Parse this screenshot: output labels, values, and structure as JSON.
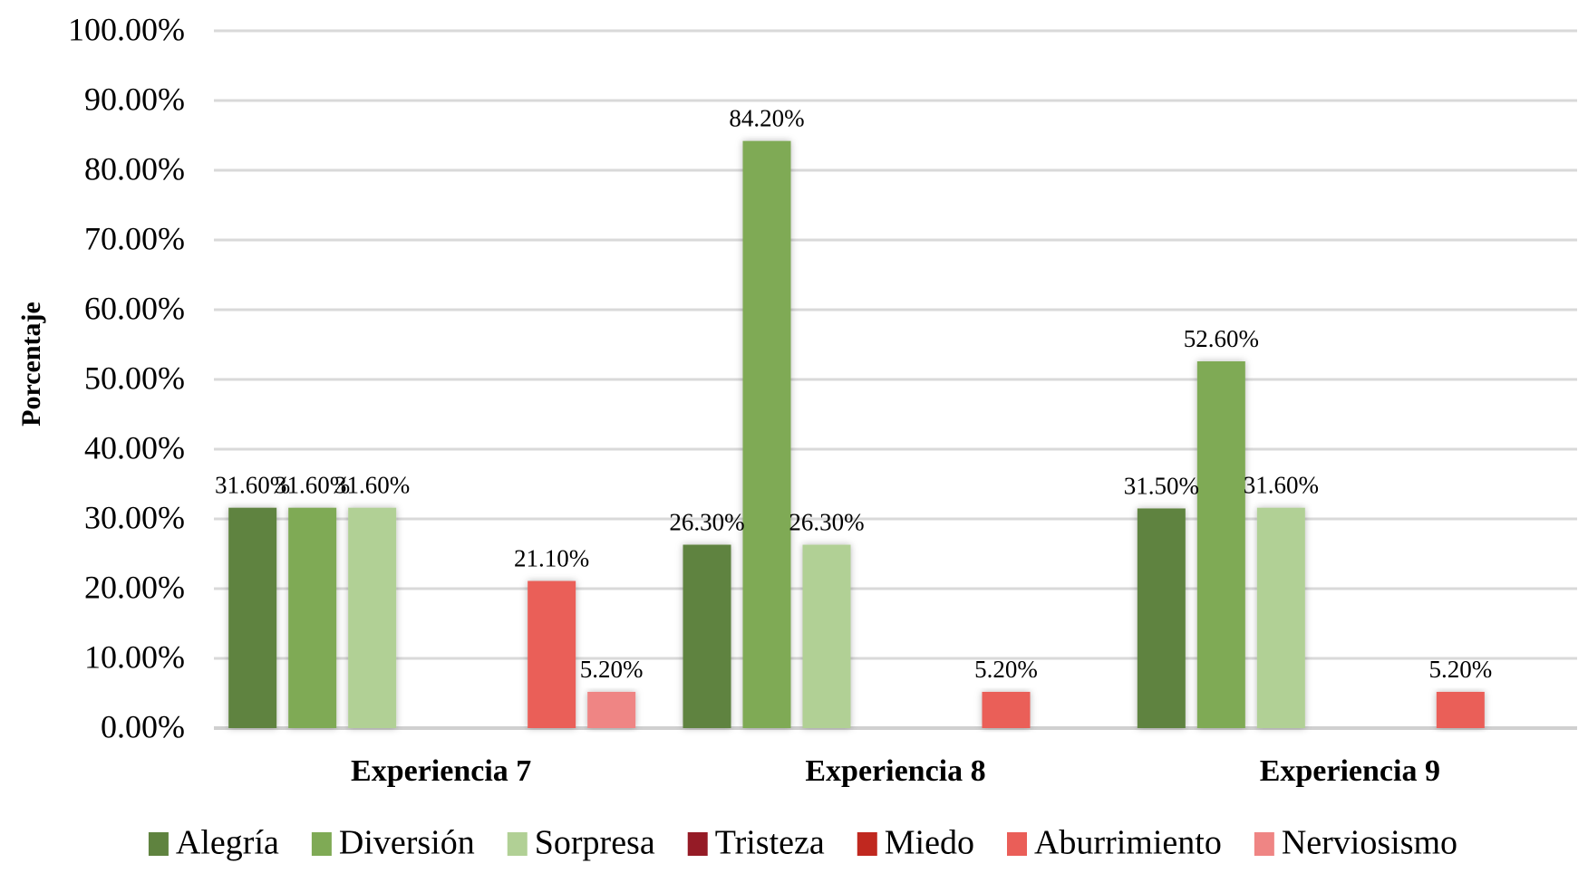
{
  "chart_data": {
    "type": "bar",
    "title": "",
    "xlabel": "",
    "ylabel": "Porcentaje",
    "ylim": [
      0,
      100
    ],
    "y_ticks": [
      "0.00%",
      "10.00%",
      "20.00%",
      "30.00%",
      "40.00%",
      "50.00%",
      "60.00%",
      "70.00%",
      "80.00%",
      "90.00%",
      "100.00%"
    ],
    "grid": true,
    "legend_position": "bottom",
    "categories": [
      "Experiencia 7",
      "Experiencia 8",
      "Experiencia 9"
    ],
    "series": [
      {
        "name": "Alegría",
        "color": "#5f833f",
        "values": [
          31.6,
          26.3,
          31.5
        ],
        "labels": [
          "31.60%",
          "26.30%",
          "31.50%"
        ]
      },
      {
        "name": "Diversión",
        "color": "#7faa55",
        "values": [
          31.6,
          84.2,
          52.6
        ],
        "labels": [
          "31.60%",
          "84.20%",
          "52.60%"
        ]
      },
      {
        "name": "Sorpresa",
        "color": "#b1d095",
        "values": [
          31.6,
          26.3,
          31.6
        ],
        "labels": [
          "31.60%",
          "26.30%",
          "31.60%"
        ]
      },
      {
        "name": "Tristeza",
        "color": "#951b26",
        "values": [
          0,
          0,
          0
        ],
        "labels": [
          null,
          null,
          null
        ]
      },
      {
        "name": "Miedo",
        "color": "#c0281f",
        "values": [
          0,
          0,
          0
        ],
        "labels": [
          null,
          null,
          null
        ]
      },
      {
        "name": "Aburrimiento",
        "color": "#ea5e58",
        "values": [
          21.1,
          5.2,
          5.2
        ],
        "labels": [
          "21.10%",
          "5.20%",
          "5.20%"
        ]
      },
      {
        "name": "Nerviosismo",
        "color": "#ef8584",
        "values": [
          5.2,
          0,
          0
        ],
        "labels": [
          "5.20%",
          null,
          null
        ]
      }
    ]
  }
}
